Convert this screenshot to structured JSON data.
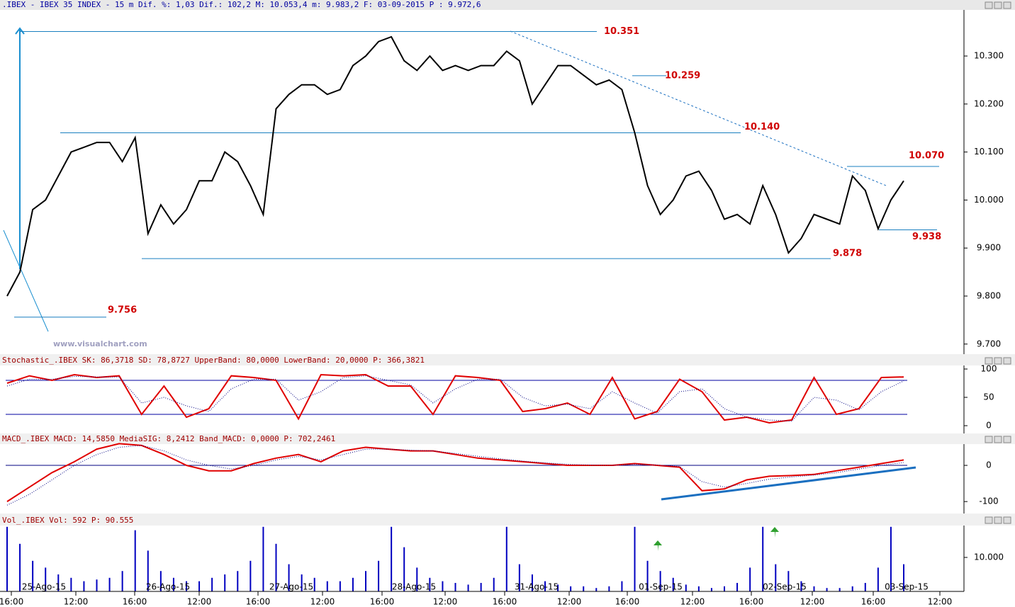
{
  "header": ".IBEX - IBEX 35 INDEX -  15 m Dif. %: 1,03 Dif.: 102,2 M: 10.053,4 m: 9.983,2 F: 03-09-2015 P : 9.972,6",
  "watermark": "www.visualchart.com",
  "x_axis": {
    "time_labels": [
      "16:00",
      "12:00",
      "16:00",
      "12:00",
      "16:00",
      "12:00",
      "16:00",
      "12:00",
      "16:00",
      "12:00",
      "16:00",
      "12:00",
      "16:00",
      "12:00",
      "16:00",
      "12:00"
    ],
    "date_labels": [
      "25-Ago-15",
      "26-Ago-15",
      "27-Ago-15",
      "28-Ago-15",
      "31-Ago-15",
      "01-Sep-15",
      "02-Sep-15",
      "03-Sep-15"
    ]
  },
  "chart_data": [
    {
      "type": "line",
      "color": "#000000",
      "values": [
        9.8,
        9.85,
        9.98,
        10.0,
        10.05,
        10.1,
        10.11,
        10.12,
        10.12,
        10.08,
        10.13,
        9.93,
        9.99,
        9.95,
        9.98,
        10.04,
        10.04,
        10.1,
        10.08,
        10.03,
        9.97,
        10.19,
        10.22,
        10.24,
        10.24,
        10.22,
        10.23,
        10.28,
        10.3,
        10.33,
        10.34,
        10.29,
        10.27,
        10.3,
        10.27,
        10.28,
        10.27,
        10.28,
        10.28,
        10.31,
        10.29,
        10.2,
        10.24,
        10.28,
        10.28,
        10.26,
        10.24,
        10.25,
        10.23,
        10.14,
        10.03,
        9.97,
        10.0,
        10.05,
        10.06,
        10.02,
        9.96,
        9.97,
        9.95,
        10.03,
        9.97,
        9.89,
        9.92,
        9.97,
        9.96,
        9.95,
        10.05,
        10.02,
        9.94,
        10.0,
        10.04
      ],
      "ylim": [
        9.679,
        10.396
      ],
      "yticks": [
        {
          "value": 9.7,
          "label": "9.700"
        },
        {
          "value": 9.8,
          "label": "9.800"
        },
        {
          "value": 9.9,
          "label": "9.900"
        },
        {
          "value": 10.0,
          "label": "10.000"
        },
        {
          "value": 10.1,
          "label": "10.100"
        },
        {
          "value": 10.2,
          "label": "10.200"
        },
        {
          "value": 10.3,
          "label": "10.300"
        }
      ],
      "levels": [
        {
          "value": 10.351,
          "label": "10.351"
        },
        {
          "value": 10.259,
          "label": "10.259"
        },
        {
          "value": 10.14,
          "label": "10.140"
        },
        {
          "value": 10.07,
          "label": "10.070"
        },
        {
          "value": 9.938,
          "label": "9.938"
        },
        {
          "value": 9.878,
          "label": "9.878"
        },
        {
          "value": 9.756,
          "label": "9.756"
        }
      ]
    },
    {
      "type": "line",
      "title": "Stochastic_.IBEX SK: 86,3718 SD: 78,8727 UpperBand: 80,0000 LowerBand: 20,0000 P: 366,3821",
      "series": [
        {
          "color": "#e00000",
          "values": [
            75,
            88,
            80,
            90,
            85,
            88,
            20,
            70,
            15,
            30,
            88,
            85,
            80,
            12,
            90,
            88,
            90,
            70,
            70,
            20,
            88,
            85,
            80,
            25,
            30,
            40,
            20,
            85,
            12,
            25,
            82,
            60,
            10,
            15,
            5,
            10,
            85,
            20,
            30,
            85,
            86
          ]
        },
        {
          "color": "#000080",
          "values": [
            70,
            82,
            82,
            87,
            86,
            86,
            40,
            50,
            35,
            25,
            65,
            82,
            82,
            45,
            60,
            85,
            88,
            80,
            72,
            40,
            65,
            82,
            82,
            50,
            35,
            38,
            30,
            60,
            40,
            22,
            60,
            65,
            30,
            15,
            10,
            8,
            50,
            45,
            28,
            60,
            79
          ]
        }
      ],
      "bands": [
        80,
        20
      ],
      "ylim": [
        -13.75,
        106.25
      ],
      "yticks": [
        0,
        50,
        100
      ]
    },
    {
      "type": "line",
      "title": "MACD_.IBEX MACD: 14,5850 MediaSIG: 8,2412 Band_MACD: 0,0000 P: 702,2461",
      "series": [
        {
          "color": "#e00000",
          "values": [
            -100,
            -60,
            -20,
            10,
            45,
            60,
            55,
            30,
            0,
            -15,
            -15,
            5,
            20,
            30,
            10,
            40,
            50,
            45,
            40,
            40,
            30,
            20,
            15,
            10,
            5,
            0,
            0,
            0,
            5,
            0,
            -5,
            -70,
            -65,
            -40,
            -30,
            -28,
            -25,
            -15,
            -5,
            5,
            15
          ]
        },
        {
          "color": "#000080",
          "values": [
            -110,
            -80,
            -40,
            0,
            30,
            50,
            55,
            40,
            15,
            0,
            -10,
            0,
            15,
            25,
            15,
            30,
            45,
            45,
            42,
            40,
            33,
            25,
            18,
            12,
            7,
            3,
            1,
            0,
            3,
            1,
            -3,
            -45,
            -60,
            -50,
            -38,
            -32,
            -27,
            -20,
            -10,
            0,
            8
          ]
        }
      ],
      "bands": [
        0
      ],
      "ylim": [
        -133,
        58.8
      ],
      "yticks": [
        -100,
        0
      ]
    },
    {
      "type": "bar",
      "title": "Vol_.IBEX Vol: 592 P: 90.555",
      "color": "#0000c0",
      "values": [
        19000,
        14000,
        9000,
        7000,
        5000,
        4000,
        3000,
        3500,
        4000,
        6000,
        18000,
        12000,
        6000,
        4000,
        3000,
        3000,
        4000,
        5000,
        6000,
        9000,
        19000,
        14000,
        8000,
        5000,
        4000,
        3000,
        3000,
        4000,
        6000,
        9000,
        19000,
        13000,
        7000,
        4000,
        3000,
        2500,
        2000,
        2500,
        4000,
        19000,
        8000,
        5000,
        3000,
        2000,
        1500,
        1500,
        1000,
        1500,
        3000,
        19000,
        9000,
        6000,
        4000,
        2000,
        1500,
        1000,
        1500,
        2500,
        7000,
        19000,
        8000,
        6000,
        3000,
        1500,
        1000,
        1000,
        1500,
        2500,
        7000,
        19000,
        8000
      ],
      "ylim": [
        0,
        19375
      ],
      "yticks": [
        {
          "value": 10000,
          "label": "10.000"
        }
      ]
    }
  ]
}
